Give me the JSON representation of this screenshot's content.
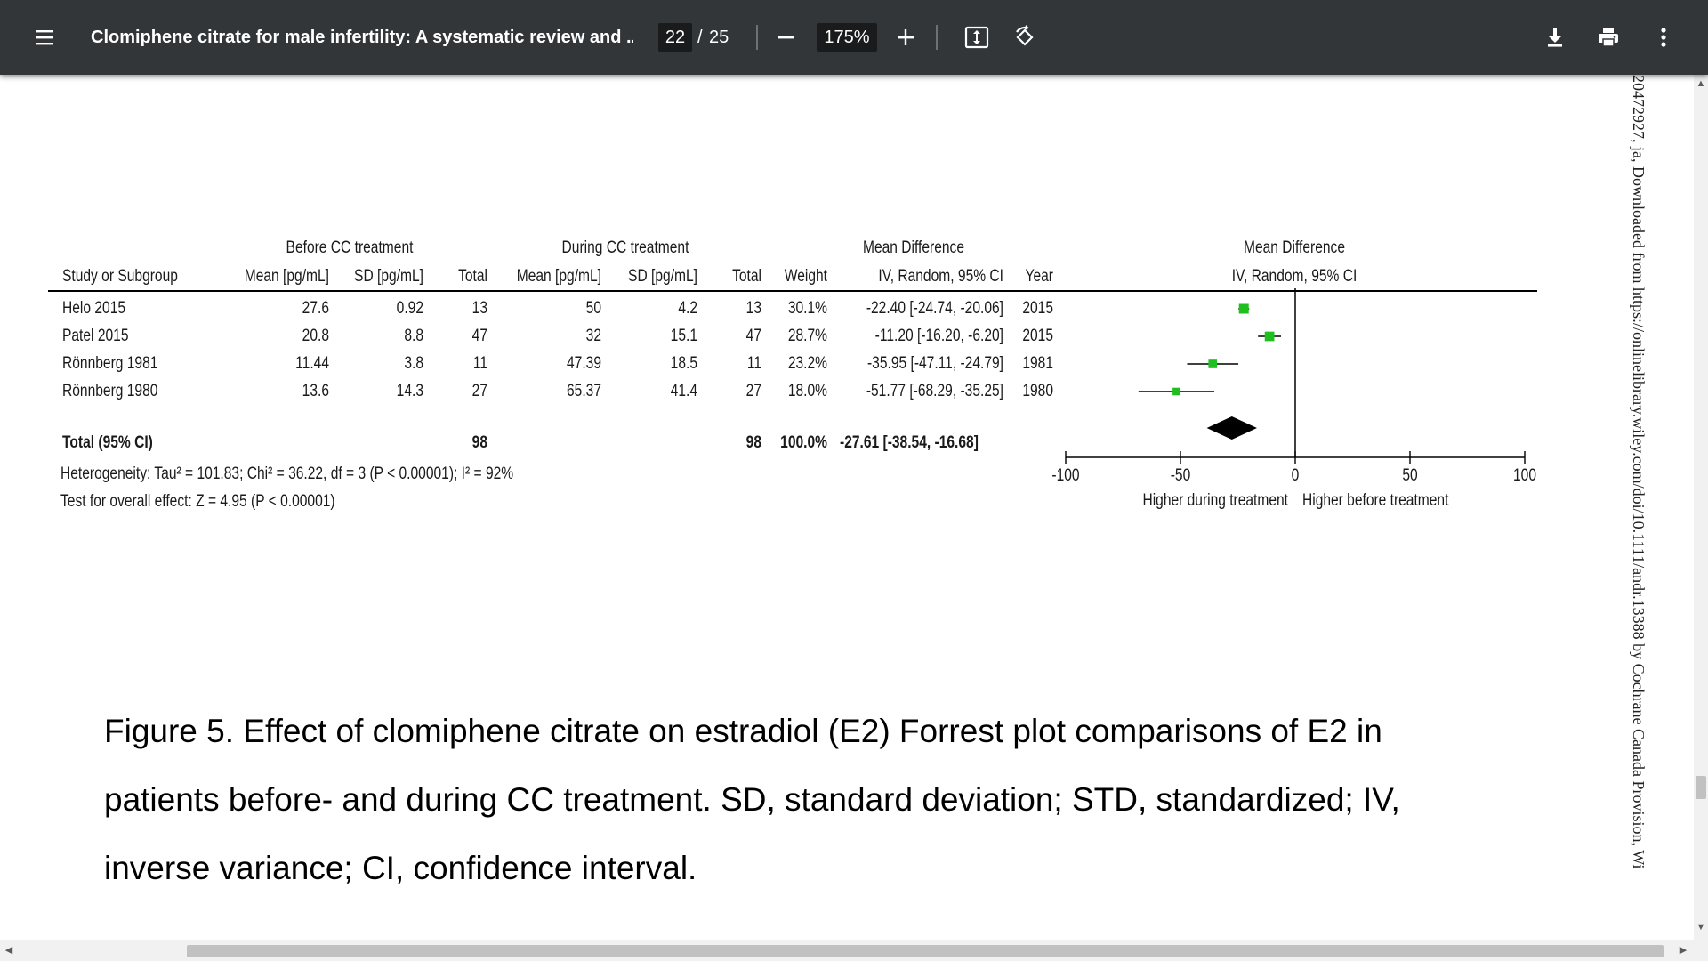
{
  "toolbar": {
    "title": "Clomiphene citrate for male infertility: A systematic review and ...",
    "page_current": "22",
    "page_separator": "/",
    "page_total": "25",
    "zoom": "175%"
  },
  "figure": {
    "group_headers": {
      "before": "Before CC treatment",
      "during": "During CC treatment",
      "md_left": "Mean Difference",
      "md_right": "Mean Difference"
    },
    "columns": {
      "study": "Study or Subgroup",
      "mean_before": "Mean [pg/mL]",
      "sd_before": "SD [pg/mL]",
      "total_before": "Total",
      "mean_during": "Mean [pg/mL]",
      "sd_during": "SD [pg/mL]",
      "total_during": "Total",
      "weight": "Weight",
      "md_method": "IV, Random, 95% CI",
      "year": "Year",
      "plot_method": "IV, Random, 95% CI"
    },
    "rows": [
      {
        "study": "Helo 2015",
        "mean_before": "27.6",
        "sd_before": "0.92",
        "total_before": "13",
        "mean_during": "50",
        "sd_during": "4.2",
        "total_during": "13",
        "weight": "30.1%",
        "md": "-22.40 [-24.74, -20.06]",
        "year": "2015"
      },
      {
        "study": "Patel 2015",
        "mean_before": "20.8",
        "sd_before": "8.8",
        "total_before": "47",
        "mean_during": "32",
        "sd_during": "15.1",
        "total_during": "47",
        "weight": "28.7%",
        "md": "-11.20 [-16.20, -6.20]",
        "year": "2015"
      },
      {
        "study": "Rönnberg 1981",
        "mean_before": "11.44",
        "sd_before": "3.8",
        "total_before": "11",
        "mean_during": "47.39",
        "sd_during": "18.5",
        "total_during": "11",
        "weight": "23.2%",
        "md": "-35.95 [-47.11, -24.79]",
        "year": "1981"
      },
      {
        "study": "Rönnberg 1980",
        "mean_before": "13.6",
        "sd_before": "14.3",
        "total_before": "27",
        "mean_during": "65.37",
        "sd_during": "41.4",
        "total_during": "27",
        "weight": "18.0%",
        "md": "-51.77 [-68.29, -35.25]",
        "year": "1980"
      }
    ],
    "total": {
      "label": "Total (95% CI)",
      "total_before": "98",
      "total_during": "98",
      "weight": "100.0%",
      "md": "-27.61 [-38.54, -16.68]"
    },
    "heterogeneity": "Heterogeneity: Tau² = 101.83; Chi² = 36.22, df = 3 (P < 0.00001); I² = 92%",
    "overall_effect": "Test for overall effect: Z = 4.95 (P < 0.00001)",
    "caption_lines": [
      "Figure 5. Effect of clomiphene citrate on estradiol (E2) Forrest plot comparisons of E2 in",
      "patients before- and during CC treatment. SD, standard deviation; STD, standardized; IV,",
      "inverse variance; CI, confidence interval."
    ],
    "side_watermark": "20472927, ja, Downloaded from https://onlinelibrary.wiley.com/doi/10.1111/andr.13388 by Cochrane Canada Provision, Wi"
  },
  "chart_data": {
    "type": "scatter",
    "subtype": "forest",
    "xlim": [
      -100,
      100
    ],
    "xticks": [
      "-100",
      "-50",
      "0",
      "50",
      "100"
    ],
    "xlabel_left": "Higher during treatment",
    "xlabel_right": "Higher before treatment",
    "studies": [
      {
        "name": "Helo 2015",
        "md": -22.4,
        "lower": -24.74,
        "upper": -20.06,
        "weight": 30.1
      },
      {
        "name": "Patel 2015",
        "md": -11.2,
        "lower": -16.2,
        "upper": -6.2,
        "weight": 28.7
      },
      {
        "name": "Rönnberg 1981",
        "md": -35.95,
        "lower": -47.11,
        "upper": -24.79,
        "weight": 23.2
      },
      {
        "name": "Rönnberg 1980",
        "md": -51.77,
        "lower": -68.29,
        "upper": -35.25,
        "weight": 18.0
      }
    ],
    "pooled": {
      "md": -27.61,
      "lower": -38.54,
      "upper": -16.68
    },
    "colors": {
      "marker": "#1fbf1f",
      "line": "#000000",
      "diamond": "#000000"
    }
  }
}
